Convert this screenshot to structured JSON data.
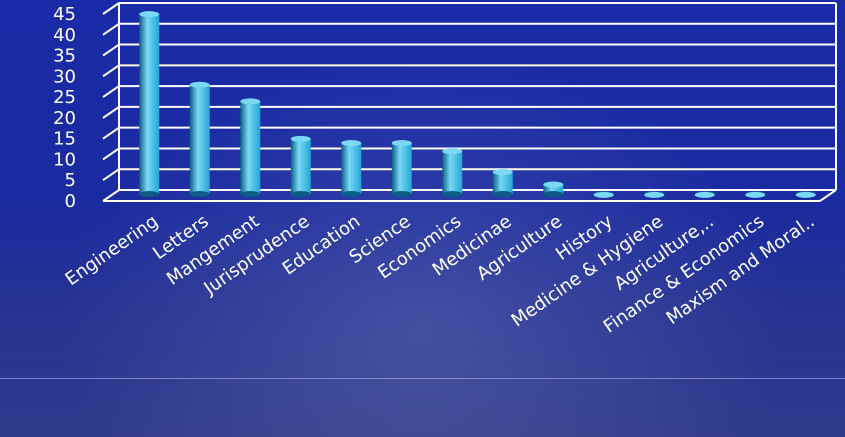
{
  "colors": {
    "background": "#16269a",
    "bar": "#22a6d6",
    "bar_light": "#7ad8f4",
    "bar_dark": "#0b5d86",
    "grid": "#ffffff",
    "text": "#ffffff"
  },
  "chart_data": {
    "type": "bar",
    "title": "",
    "xlabel": "",
    "ylabel": "",
    "ylim": [
      0,
      45
    ],
    "yticks": [
      0,
      5,
      10,
      15,
      20,
      25,
      30,
      35,
      40,
      45
    ],
    "grid": true,
    "three_d": true,
    "categories": [
      "Engineering",
      "Letters",
      "Mangement",
      "Jurisprudence",
      "Education",
      "Science",
      "Economics",
      "Medicinae",
      "Agriculture",
      "History",
      "Medicine & Hygiene",
      "Agriculture,..",
      "Finance & Economics",
      "Maxism and Moral.."
    ],
    "values": [
      44,
      27,
      23,
      14,
      13,
      13,
      11,
      6,
      3,
      0.5,
      0.5,
      0.5,
      0.5,
      0.5
    ]
  }
}
